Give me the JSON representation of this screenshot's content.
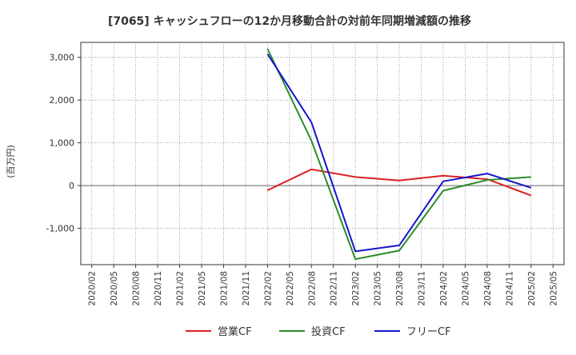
{
  "chart_data": {
    "type": "line",
    "title": "[7065]  キャッシュフローの12か月移動合計の対前年同期増減額の推移",
    "ylabel": "(百万円)",
    "xlabel": "",
    "ylim": [
      -1850,
      3350
    ],
    "yticks": [
      -1000,
      0,
      1000,
      2000,
      3000
    ],
    "ytick_labels": [
      "-1,000",
      "0",
      "1,000",
      "2,000",
      "3,000"
    ],
    "categories": [
      "2020/02",
      "2020/05",
      "2020/08",
      "2020/11",
      "2021/02",
      "2021/05",
      "2021/08",
      "2021/11",
      "2022/02",
      "2022/05",
      "2022/08",
      "2022/11",
      "2023/02",
      "2023/05",
      "2023/08",
      "2023/11",
      "2024/02",
      "2024/05",
      "2024/08",
      "2024/11",
      "2025/02",
      "2025/05"
    ],
    "grid": true,
    "legend_position": "bottom",
    "series": [
      {
        "name": "営業CF",
        "color": "#dd1f1f",
        "points": [
          [
            "2022/02",
            -110
          ],
          [
            "2022/08",
            380
          ],
          [
            "2023/02",
            200
          ],
          [
            "2023/08",
            120
          ],
          [
            "2024/02",
            230
          ],
          [
            "2024/08",
            150
          ],
          [
            "2025/02",
            -230
          ]
        ]
      },
      {
        "name": "投資CF",
        "color": "#2e8b2e",
        "points": [
          [
            "2022/02",
            3200
          ],
          [
            "2022/08",
            1050
          ],
          [
            "2023/02",
            -1720
          ],
          [
            "2023/08",
            -1520
          ],
          [
            "2024/02",
            -120
          ],
          [
            "2024/08",
            130
          ],
          [
            "2025/02",
            200
          ]
        ]
      },
      {
        "name": "フリーCF",
        "color": "#1515cc",
        "points": [
          [
            "2022/02",
            3080
          ],
          [
            "2022/08",
            1480
          ],
          [
            "2023/02",
            -1540
          ],
          [
            "2023/08",
            -1400
          ],
          [
            "2024/02",
            100
          ],
          [
            "2024/08",
            280
          ],
          [
            "2025/02",
            -50
          ]
        ]
      }
    ]
  }
}
